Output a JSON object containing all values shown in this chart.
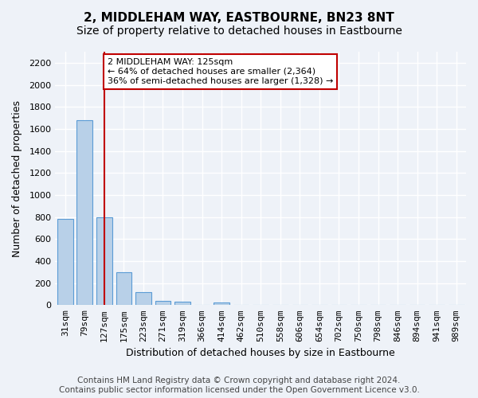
{
  "title": "2, MIDDLEHAM WAY, EASTBOURNE, BN23 8NT",
  "subtitle": "Size of property relative to detached houses in Eastbourne",
  "xlabel": "Distribution of detached houses by size in Eastbourne",
  "ylabel": "Number of detached properties",
  "categories": [
    "31sqm",
    "79sqm",
    "127sqm",
    "175sqm",
    "223sqm",
    "271sqm",
    "319sqm",
    "366sqm",
    "414sqm",
    "462sqm",
    "510sqm",
    "558sqm",
    "606sqm",
    "654sqm",
    "702sqm",
    "750sqm",
    "798sqm",
    "846sqm",
    "894sqm",
    "941sqm",
    "989sqm"
  ],
  "values": [
    780,
    1680,
    800,
    295,
    115,
    40,
    30,
    0,
    25,
    0,
    0,
    0,
    0,
    0,
    0,
    0,
    0,
    0,
    0,
    0,
    0
  ],
  "bar_color": "#b8d0e8",
  "bar_edge_color": "#5b9bd5",
  "vline_x_index": 2,
  "vline_color": "#c00000",
  "annotation_title": "2 MIDDLEHAM WAY: 125sqm",
  "annotation_line1": "← 64% of detached houses are smaller (2,364)",
  "annotation_line2": "36% of semi-detached houses are larger (1,328) →",
  "annotation_box_color": "#ffffff",
  "annotation_box_edge_color": "#c00000",
  "ylim": [
    0,
    2300
  ],
  "yticks": [
    0,
    200,
    400,
    600,
    800,
    1000,
    1200,
    1400,
    1600,
    1800,
    2000,
    2200
  ],
  "footnote1": "Contains HM Land Registry data © Crown copyright and database right 2024.",
  "footnote2": "Contains public sector information licensed under the Open Government Licence v3.0.",
  "bg_color": "#eef2f8",
  "grid_color": "#ffffff",
  "title_fontsize": 11,
  "subtitle_fontsize": 10,
  "axis_fontsize": 9,
  "tick_fontsize": 8,
  "footnote_fontsize": 7.5
}
